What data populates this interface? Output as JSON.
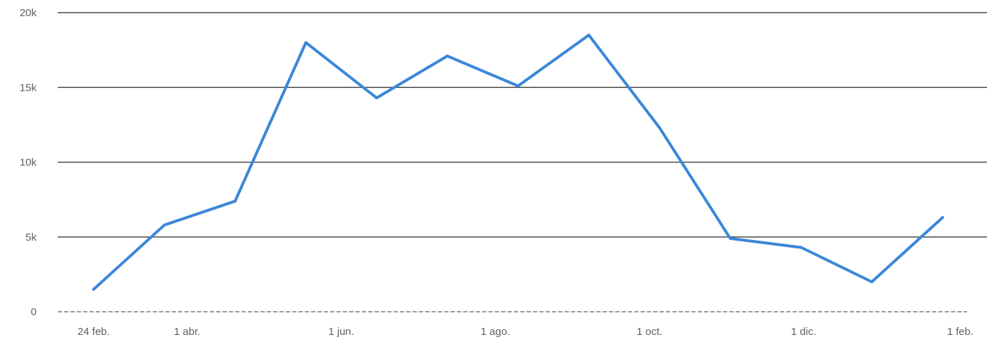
{
  "chart_data": {
    "type": "line",
    "title": "",
    "xlabel": "",
    "ylabel": "",
    "ylim": [
      0,
      20000
    ],
    "y_ticks": [
      {
        "value": 0,
        "label": "0"
      },
      {
        "value": 5000,
        "label": "5k"
      },
      {
        "value": 10000,
        "label": "10k"
      },
      {
        "value": 15000,
        "label": "15k"
      },
      {
        "value": 20000,
        "label": "20k"
      }
    ],
    "x_ticks": [
      {
        "date": "2024-02-24",
        "label": "24 feb."
      },
      {
        "date": "2024-04-01",
        "label": "1 abr."
      },
      {
        "date": "2024-06-01",
        "label": "1 jun."
      },
      {
        "date": "2024-08-01",
        "label": "1 ago."
      },
      {
        "date": "2024-10-01",
        "label": "1 oct."
      },
      {
        "date": "2024-12-01",
        "label": "1 dic."
      },
      {
        "date": "2025-02-01",
        "label": "1 feb."
      }
    ],
    "grid": true,
    "legend": false,
    "series": [
      {
        "color": "#3b87d9",
        "points": [
          {
            "x": "2024-02-24",
            "y": 1500
          },
          {
            "x": "2024-03-23",
            "y": 5800
          },
          {
            "x": "2024-04-20",
            "y": 7400
          },
          {
            "x": "2024-05-18",
            "y": 18000
          },
          {
            "x": "2024-06-15",
            "y": 14300
          },
          {
            "x": "2024-07-13",
            "y": 17100
          },
          {
            "x": "2024-08-10",
            "y": 15100
          },
          {
            "x": "2024-09-07",
            "y": 18500
          },
          {
            "x": "2024-10-05",
            "y": 12300
          },
          {
            "x": "2024-11-02",
            "y": 4900
          },
          {
            "x": "2024-11-30",
            "y": 4300
          },
          {
            "x": "2024-12-28",
            "y": 2000
          },
          {
            "x": "2025-01-25",
            "y": 6300
          }
        ]
      }
    ],
    "baseline": {
      "y": 0,
      "color": "#7a7a7a",
      "style": "dashed"
    }
  }
}
